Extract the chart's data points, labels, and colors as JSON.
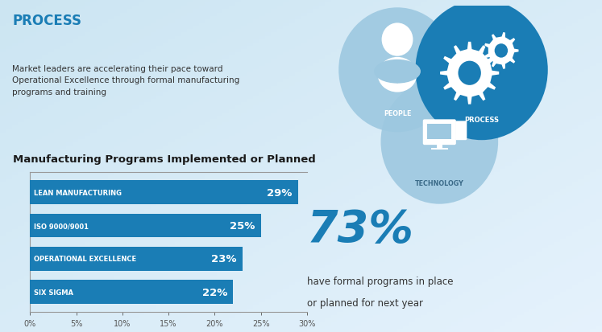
{
  "title_label": "PROCESS",
  "subtitle": "Market leaders are accelerating their pace toward\nOperational Excellence through formal manufacturing\nprograms and training",
  "chart_title": "Manufacturing Programs Implemented or Planned",
  "categories": [
    "LEAN MANUFACTURING",
    "ISO 9000/9001",
    "OPERATIONAL EXCELLENCE",
    "SIX SIGMA"
  ],
  "values": [
    29,
    25,
    23,
    22
  ],
  "bar_color": "#1a7db5",
  "xlim": [
    0,
    30
  ],
  "xticks": [
    0,
    5,
    10,
    15,
    20,
    25,
    30
  ],
  "xtick_labels": [
    "0%",
    "5%",
    "10%",
    "15%",
    "20%",
    "25%",
    "30%"
  ],
  "big_number": "73%",
  "big_number_color": "#1a7db5",
  "big_number_sub1": "have formal programs in place",
  "big_number_sub2": "or planned for next year",
  "circle_people_color": "#9dc8e0",
  "circle_process_color": "#1a7db5",
  "circle_tech_color": "#9dc8e0",
  "people_label": "PEOPLE",
  "process_label": "PROCESS",
  "tech_label": "TECHNOLOGY",
  "title_color": "#1a7db5",
  "text_color": "#333333",
  "bg_left": "#cde4f0",
  "bg_right": "#daedf7"
}
